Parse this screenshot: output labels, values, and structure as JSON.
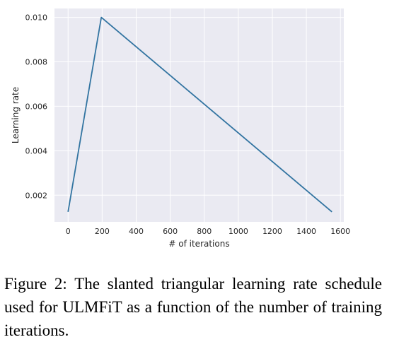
{
  "caption": "Figure 2:  The slanted triangular learning rate schedule used for ULMFiT as a function of the number of training iterations.",
  "chart_data": {
    "type": "line",
    "xlabel": "# of iterations",
    "ylabel": "Learning rate",
    "xlim": [
      -80,
      1620
    ],
    "ylim": [
      0.0008,
      0.0104
    ],
    "xticks": [
      0,
      200,
      400,
      600,
      800,
      1000,
      1200,
      1400,
      1600
    ],
    "yticks": [
      0.002,
      0.004,
      0.006,
      0.008,
      0.01
    ],
    "xtick_labels": [
      "0",
      "200",
      "400",
      "600",
      "800",
      "1000",
      "1200",
      "1400",
      "1600"
    ],
    "ytick_labels": [
      "0.002",
      "0.004",
      "0.006",
      "0.008",
      "0.010"
    ],
    "grid": true,
    "background": "#EAEAF2",
    "series": [
      {
        "color": "#3274A1",
        "x": [
          0,
          195,
          1550
        ],
        "y": [
          0.00125,
          0.01,
          0.00125
        ]
      }
    ]
  }
}
